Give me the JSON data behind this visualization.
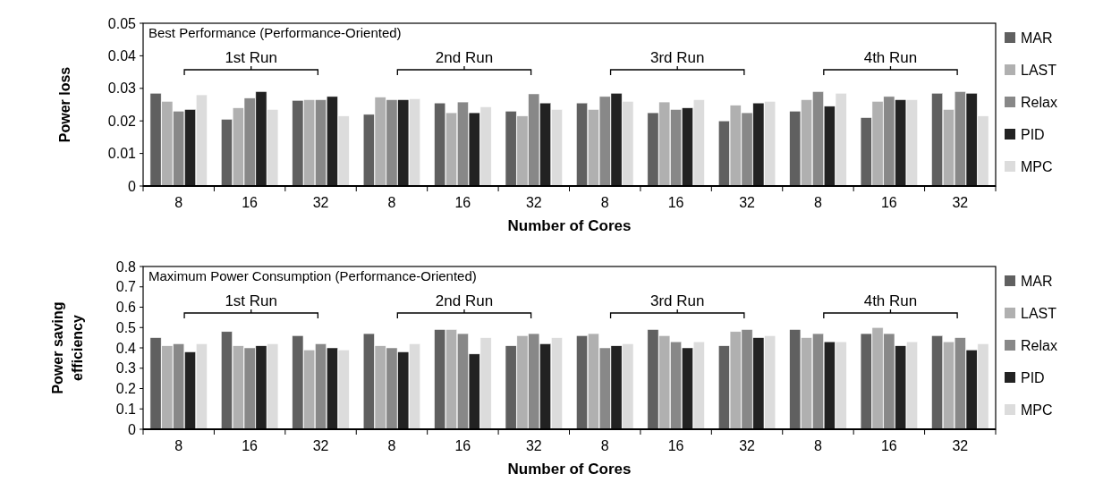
{
  "chart_data": [
    {
      "type": "bar",
      "title": "Best Performance (Performance-Oriented)",
      "xlabel": "Number of Cores",
      "ylabel": "Power loss",
      "categories": [
        "8",
        "16",
        "32",
        "8",
        "16",
        "32",
        "8",
        "16",
        "32",
        "8",
        "16",
        "32"
      ],
      "series": [
        {
          "name": "MAR",
          "color": "#606060",
          "values": [
            0.0285,
            0.0205,
            0.0263,
            0.022,
            0.0255,
            0.023,
            0.0255,
            0.0225,
            0.02,
            0.023,
            0.021,
            0.0285
          ]
        },
        {
          "name": "LAST",
          "color": "#b0b0b0",
          "values": [
            0.026,
            0.024,
            0.0265,
            0.0273,
            0.0225,
            0.0215,
            0.0235,
            0.0258,
            0.0248,
            0.0265,
            0.026,
            0.0235
          ]
        },
        {
          "name": "Relax",
          "color": "#888888",
          "values": [
            0.023,
            0.027,
            0.0265,
            0.0265,
            0.0258,
            0.0283,
            0.0275,
            0.0235,
            0.0225,
            0.029,
            0.0275,
            0.029
          ]
        },
        {
          "name": "PID",
          "color": "#222222",
          "values": [
            0.0235,
            0.029,
            0.0275,
            0.0265,
            0.0225,
            0.0255,
            0.0285,
            0.024,
            0.0255,
            0.0245,
            0.0265,
            0.0285
          ]
        },
        {
          "name": "MPC",
          "color": "#dcdcdc",
          "values": [
            0.028,
            0.0235,
            0.0215,
            0.0268,
            0.0243,
            0.0235,
            0.026,
            0.0265,
            0.026,
            0.0285,
            0.0265,
            0.0215
          ]
        }
      ],
      "ylim": [
        0,
        0.05
      ],
      "yticks": [
        0,
        0.01,
        0.02,
        0.03,
        0.04,
        0.05
      ],
      "grid": false,
      "legend": "right",
      "annotations": [
        "1st Run",
        "2nd Run",
        "3rd Run",
        "4th Run"
      ]
    },
    {
      "type": "bar",
      "title": "Maximum Power Consumption (Performance-Oriented)",
      "xlabel": "Number of Cores",
      "ylabel": "Power saving efficiency",
      "categories": [
        "8",
        "16",
        "32",
        "8",
        "16",
        "32",
        "8",
        "16",
        "32",
        "8",
        "16",
        "32"
      ],
      "series": [
        {
          "name": "MAR",
          "color": "#606060",
          "values": [
            0.45,
            0.48,
            0.46,
            0.47,
            0.49,
            0.41,
            0.46,
            0.49,
            0.41,
            0.49,
            0.47,
            0.46
          ]
        },
        {
          "name": "LAST",
          "color": "#b0b0b0",
          "values": [
            0.41,
            0.41,
            0.39,
            0.41,
            0.49,
            0.46,
            0.47,
            0.46,
            0.48,
            0.45,
            0.5,
            0.43
          ]
        },
        {
          "name": "Relax",
          "color": "#888888",
          "values": [
            0.42,
            0.4,
            0.42,
            0.4,
            0.47,
            0.47,
            0.4,
            0.43,
            0.49,
            0.47,
            0.47,
            0.45
          ]
        },
        {
          "name": "PID",
          "color": "#222222",
          "values": [
            0.38,
            0.41,
            0.4,
            0.38,
            0.37,
            0.42,
            0.41,
            0.4,
            0.45,
            0.43,
            0.41,
            0.39
          ]
        },
        {
          "name": "MPC",
          "color": "#dcdcdc",
          "values": [
            0.42,
            0.42,
            0.39,
            0.42,
            0.45,
            0.45,
            0.42,
            0.43,
            0.46,
            0.43,
            0.43,
            0.42
          ]
        }
      ],
      "ylim": [
        0,
        0.8
      ],
      "yticks": [
        0,
        0.1,
        0.2,
        0.3,
        0.4,
        0.5,
        0.6,
        0.7,
        0.8
      ],
      "grid": false,
      "legend": "right",
      "annotations": [
        "1st Run",
        "2nd Run",
        "3rd Run",
        "4th Run"
      ]
    }
  ]
}
